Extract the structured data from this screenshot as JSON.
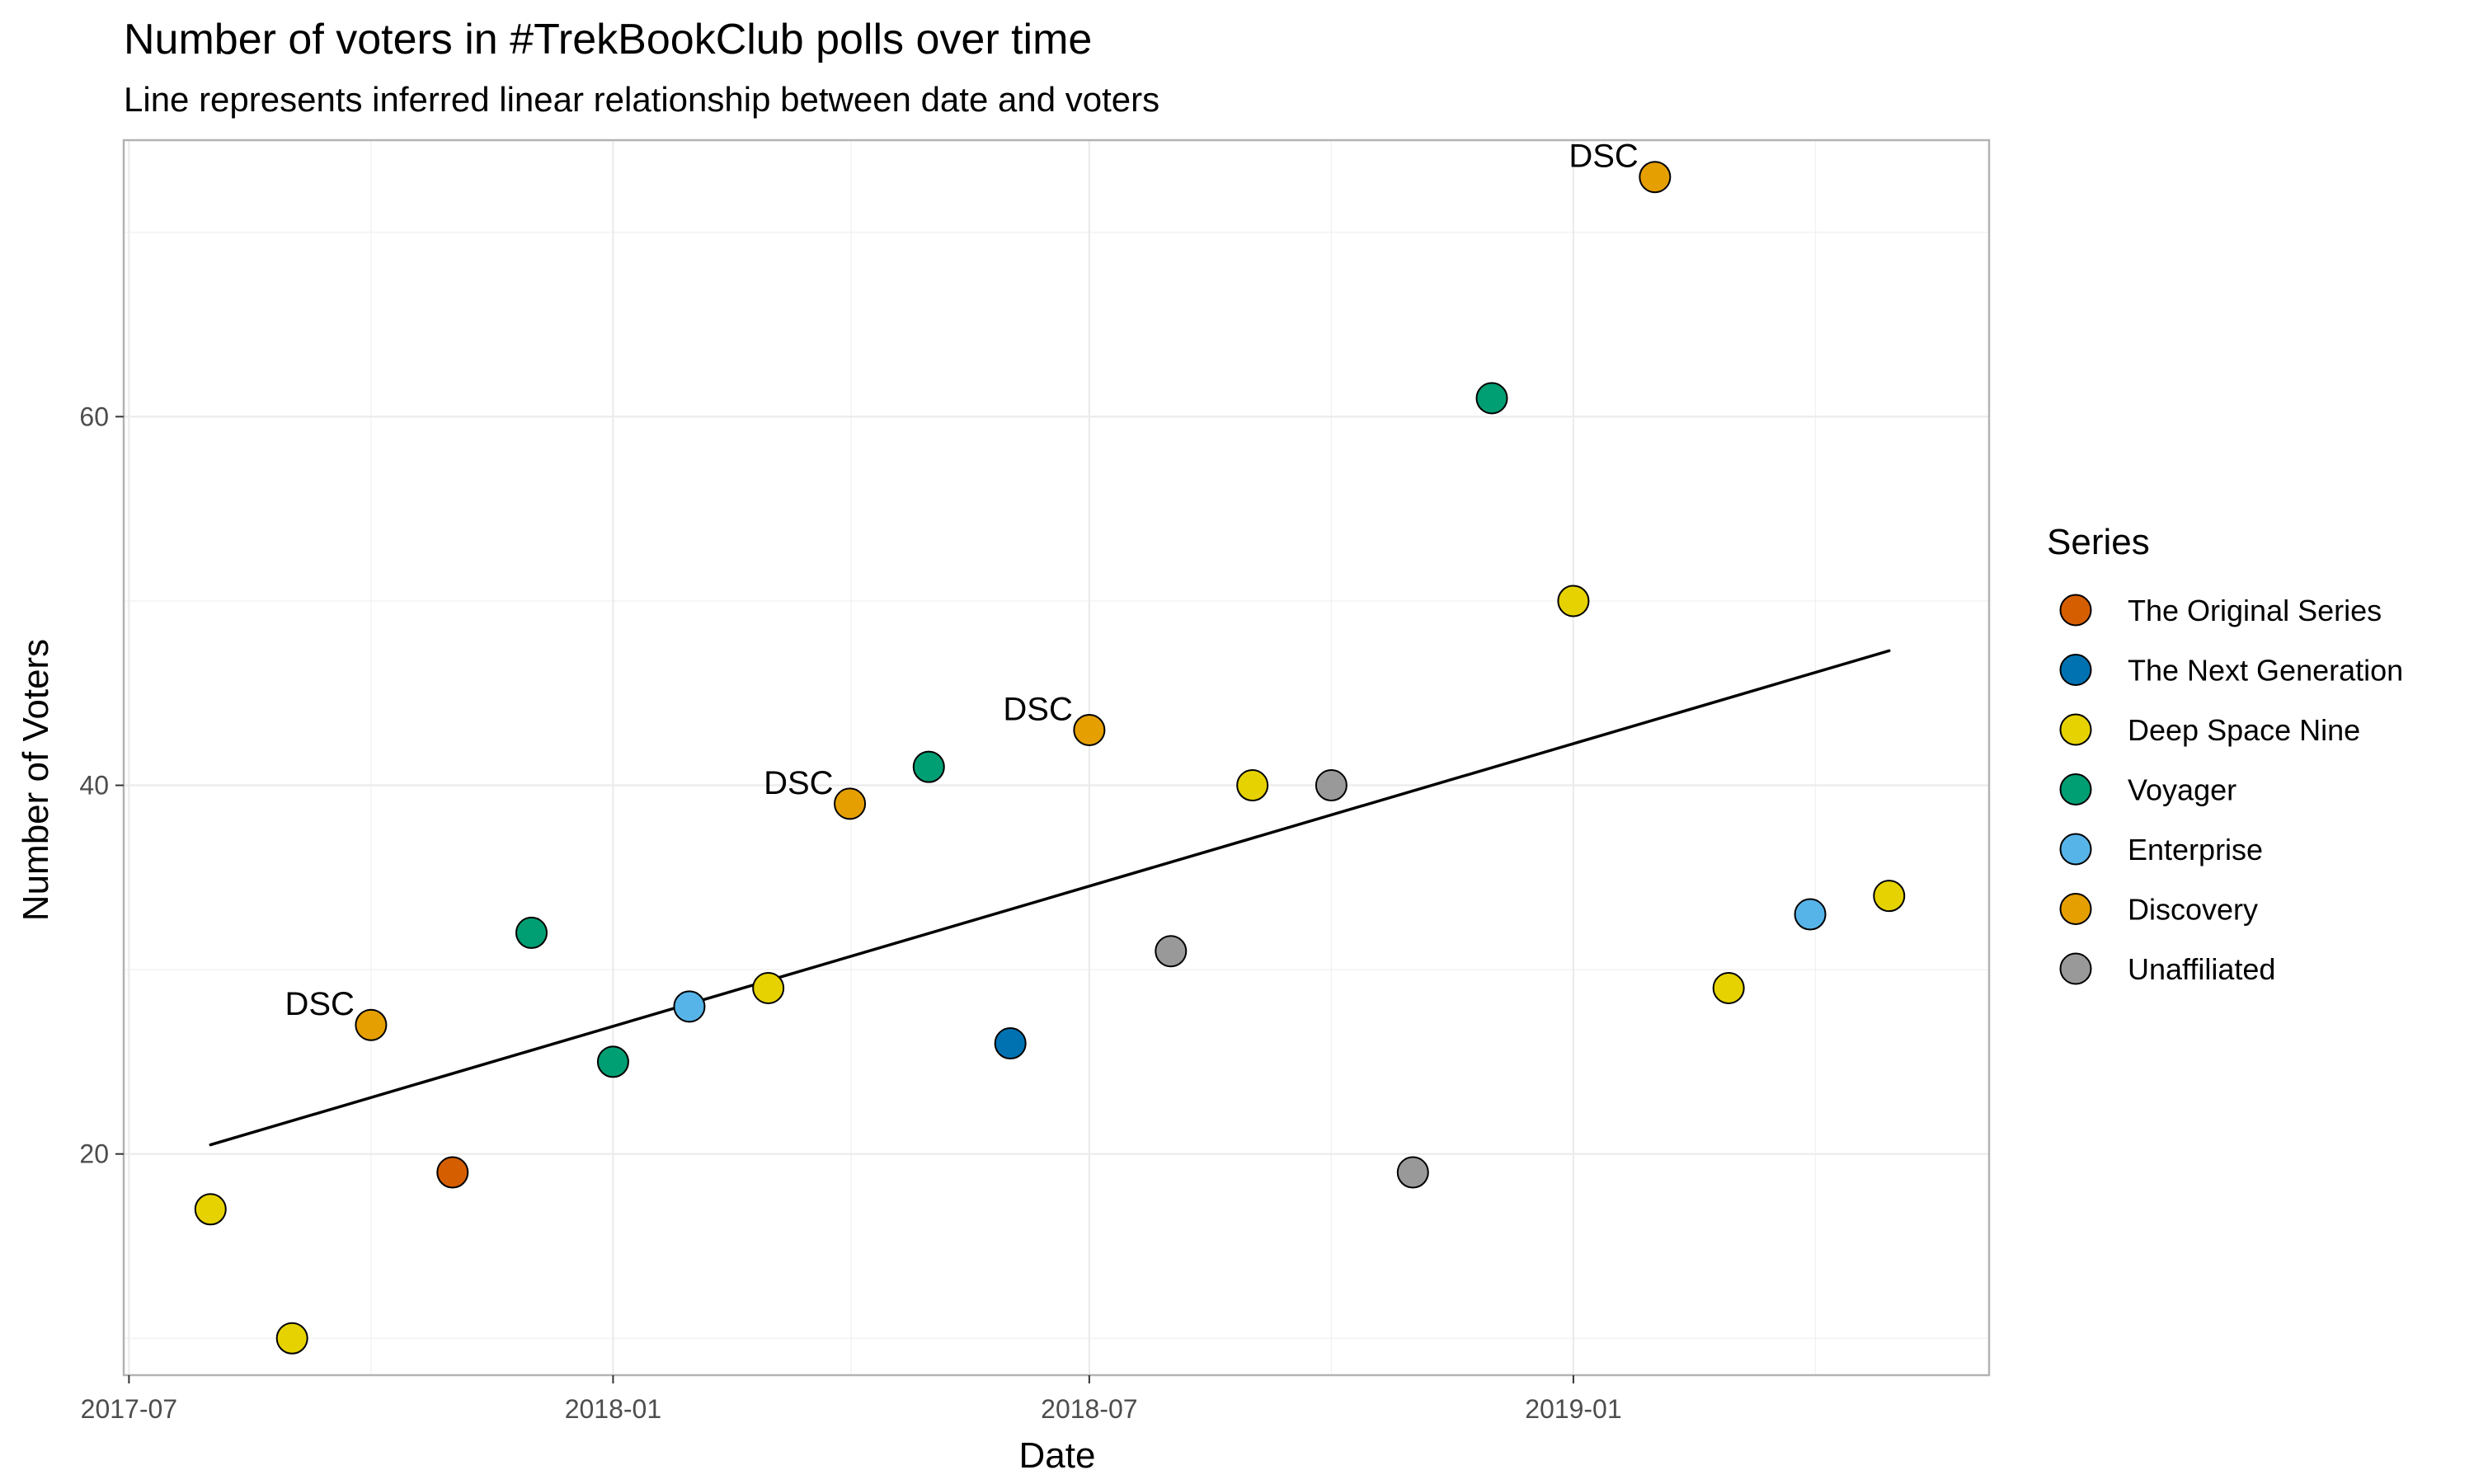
{
  "chart_data": {
    "type": "scatter",
    "title": "Number of voters in #TrekBookClub polls over time",
    "subtitle": "Line represents inferred linear relationship between date and voters",
    "xlabel": "Date",
    "ylabel": "Number of Voters",
    "xlim": [
      "2017-06-29",
      "2019-06-08"
    ],
    "ylim": [
      8,
      75
    ],
    "x_ticks": [
      {
        "date": "2017-07-01",
        "label": "2017-07"
      },
      {
        "date": "2018-01-01",
        "label": "2018-01"
      },
      {
        "date": "2018-07-01",
        "label": "2018-07"
      },
      {
        "date": "2019-01-01",
        "label": "2019-01"
      }
    ],
    "y_ticks": [
      {
        "value": 20,
        "label": "20"
      },
      {
        "value": 40,
        "label": "40"
      },
      {
        "value": 60,
        "label": "60"
      }
    ],
    "grid": true,
    "legend": {
      "title": "Series",
      "position": "right",
      "entries": [
        {
          "name": "The Original Series",
          "color": "#D55E00"
        },
        {
          "name": "The Next Generation",
          "color": "#0072B2"
        },
        {
          "name": "Deep Space Nine",
          "color": "#E6D200"
        },
        {
          "name": "Voyager",
          "color": "#009E73"
        },
        {
          "name": "Enterprise",
          "color": "#56B4E9"
        },
        {
          "name": "Discovery",
          "color": "#E69F00"
        },
        {
          "name": "Unaffiliated",
          "color": "#999999"
        }
      ]
    },
    "points": [
      {
        "date": "2017-08-01",
        "voters": 17,
        "series": "Deep Space Nine",
        "label": ""
      },
      {
        "date": "2017-09-01",
        "voters": 10,
        "series": "Deep Space Nine",
        "label": ""
      },
      {
        "date": "2017-10-01",
        "voters": 27,
        "series": "Discovery",
        "label": "DSC"
      },
      {
        "date": "2017-11-01",
        "voters": 19,
        "series": "The Original Series",
        "label": ""
      },
      {
        "date": "2017-12-01",
        "voters": 32,
        "series": "Voyager",
        "label": ""
      },
      {
        "date": "2018-01-01",
        "voters": 25,
        "series": "Voyager",
        "label": ""
      },
      {
        "date": "2018-01-30",
        "voters": 28,
        "series": "Enterprise",
        "label": ""
      },
      {
        "date": "2018-03-01",
        "voters": 29,
        "series": "Deep Space Nine",
        "label": ""
      },
      {
        "date": "2018-04-01",
        "voters": 39,
        "series": "Discovery",
        "label": "DSC"
      },
      {
        "date": "2018-05-01",
        "voters": 41,
        "series": "Voyager",
        "label": ""
      },
      {
        "date": "2018-06-01",
        "voters": 26,
        "series": "The Next Generation",
        "label": ""
      },
      {
        "date": "2018-07-01",
        "voters": 43,
        "series": "Discovery",
        "label": "DSC"
      },
      {
        "date": "2018-08-01",
        "voters": 31,
        "series": "Unaffiliated",
        "label": ""
      },
      {
        "date": "2018-09-01",
        "voters": 40,
        "series": "Deep Space Nine",
        "label": ""
      },
      {
        "date": "2018-10-01",
        "voters": 40,
        "series": "Unaffiliated",
        "label": ""
      },
      {
        "date": "2018-11-01",
        "voters": 19,
        "series": "Unaffiliated",
        "label": ""
      },
      {
        "date": "2018-12-01",
        "voters": 61,
        "series": "Voyager",
        "label": ""
      },
      {
        "date": "2019-01-01",
        "voters": 50,
        "series": "Deep Space Nine",
        "label": ""
      },
      {
        "date": "2019-02-01",
        "voters": 73,
        "series": "Discovery",
        "label": "DSC"
      },
      {
        "date": "2019-03-01",
        "voters": 29,
        "series": "Deep Space Nine",
        "label": ""
      },
      {
        "date": "2019-04-01",
        "voters": 33,
        "series": "Enterprise",
        "label": ""
      },
      {
        "date": "2019-05-01",
        "voters": 34,
        "series": "Deep Space Nine",
        "label": ""
      }
    ],
    "trend_line": {
      "type": "linear",
      "start": {
        "date": "2017-08-01",
        "voters": 20.5
      },
      "end": {
        "date": "2019-05-01",
        "voters": 47.3
      }
    }
  }
}
